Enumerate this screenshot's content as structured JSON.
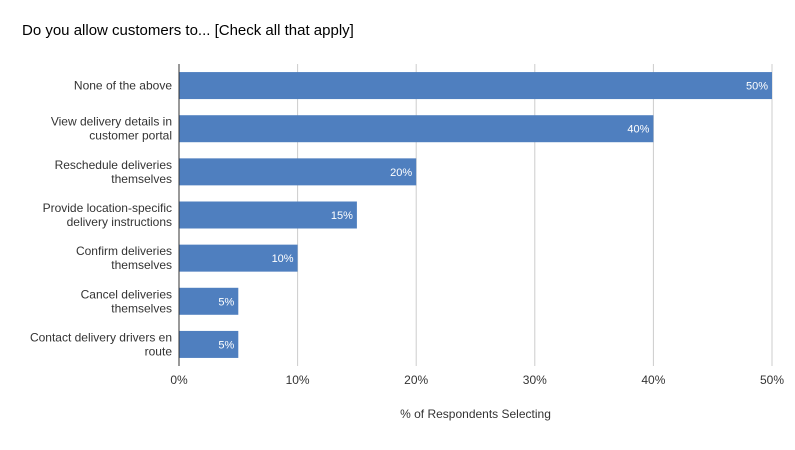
{
  "chart_data": {
    "type": "bar",
    "orientation": "horizontal",
    "title": "Do you allow customers to... [Check all that apply]",
    "xlabel": "% of Respondents Selecting",
    "ylabel": "",
    "categories": [
      [
        "None of the above"
      ],
      [
        "View delivery details in",
        "customer portal"
      ],
      [
        "Reschedule deliveries",
        "themselves"
      ],
      [
        "Provide location-specific",
        "delivery instructions"
      ],
      [
        "Confirm deliveries",
        "themselves"
      ],
      [
        "Cancel deliveries",
        "themselves"
      ],
      [
        "Contact delivery drivers en",
        "route"
      ]
    ],
    "values": [
      50,
      40,
      20,
      15,
      10,
      5,
      5
    ],
    "data_labels": [
      "50%",
      "40%",
      "20%",
      "15%",
      "10%",
      "5%",
      "5%"
    ],
    "xlim": [
      0,
      50
    ],
    "xticks": [
      0,
      10,
      20,
      30,
      40,
      50
    ],
    "xtick_labels": [
      "0%",
      "10%",
      "20%",
      "30%",
      "40%",
      "50%"
    ],
    "grid": true,
    "bar_color": "#4f7fbf",
    "legend": "none"
  }
}
